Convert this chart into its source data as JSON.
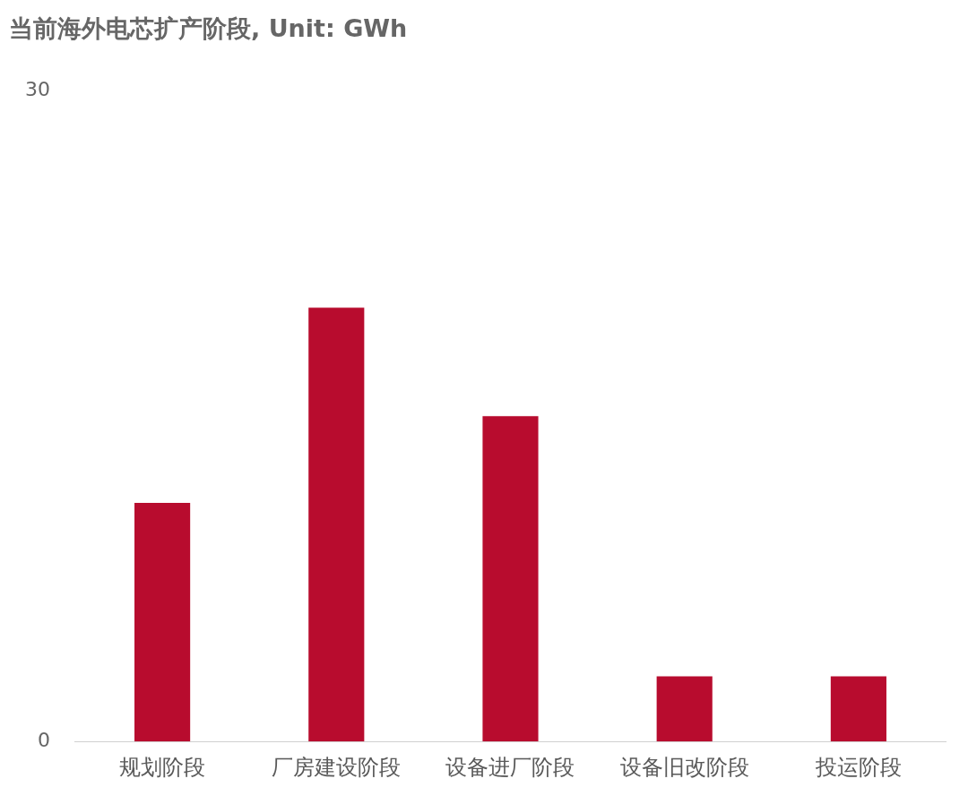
{
  "chart_data": {
    "type": "bar",
    "title": "当前海外电芯扩产阶段, Unit: GWh",
    "categories": [
      "规划阶段",
      "厂房建设阶段",
      "设备进厂阶段",
      "设备旧改阶段",
      "投运阶段"
    ],
    "values": [
      11,
      20,
      15,
      3,
      3
    ],
    "color": "#b80c2e",
    "ylim": [
      0,
      30
    ],
    "yticks": [
      0,
      30
    ],
    "grid": false,
    "legend": false
  }
}
